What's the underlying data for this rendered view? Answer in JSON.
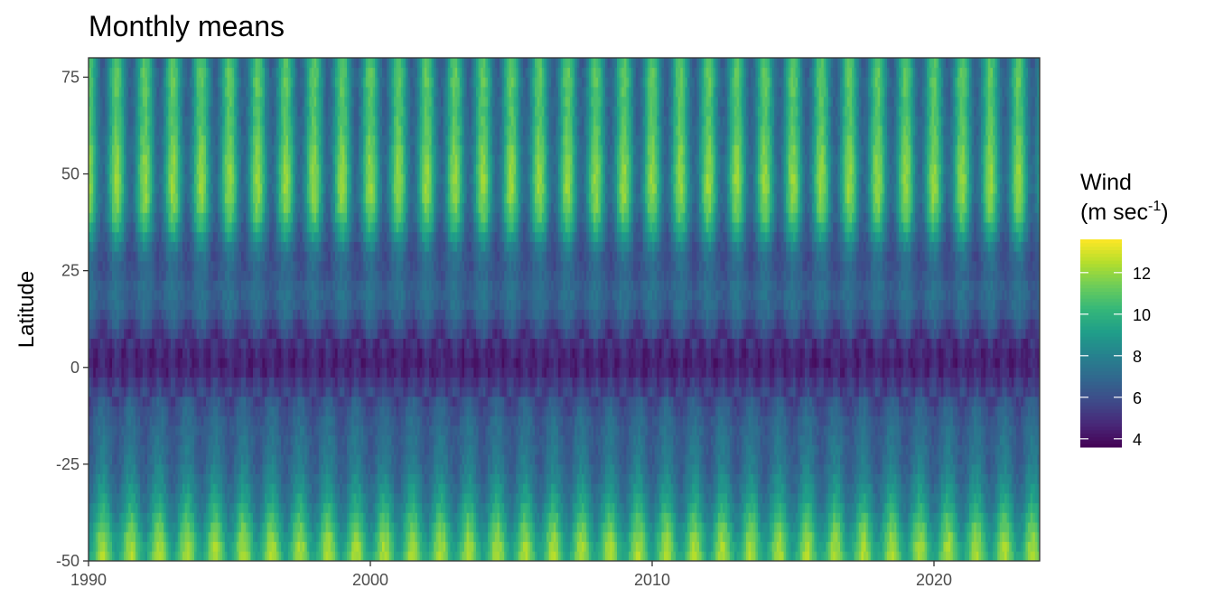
{
  "chart_data": {
    "type": "heatmap",
    "title": "Monthly means",
    "xlabel": "",
    "ylabel": "Latitude",
    "xlim": [
      1990,
      2023.75
    ],
    "ylim": [
      -50,
      80
    ],
    "x_ticks": [
      1990,
      2000,
      2010,
      2020
    ],
    "x_tick_labels": [
      "1990",
      "2000",
      "2010",
      "2020"
    ],
    "y_ticks": [
      -50,
      -25,
      0,
      25,
      50,
      75
    ],
    "y_tick_labels": [
      "-50",
      "-25",
      "0",
      "25",
      "50",
      "75"
    ],
    "x_step_months": 1,
    "latitudes": [
      -50,
      -45,
      -40,
      -35,
      -30,
      -25,
      -20,
      -15,
      -10,
      -5,
      0,
      5,
      10,
      15,
      20,
      25,
      30,
      35,
      40,
      45,
      50,
      55,
      60,
      65,
      70,
      75,
      80
    ],
    "lat_mean_wind": [
      11.0,
      10.5,
      9.5,
      8.5,
      7.8,
      7.2,
      7.0,
      6.8,
      6.3,
      5.5,
      4.5,
      4.8,
      5.8,
      6.8,
      7.0,
      6.5,
      6.8,
      8.0,
      9.0,
      9.5,
      9.5,
      9.3,
      9.0,
      8.8,
      8.8,
      9.0,
      8.5
    ],
    "lat_seasonal_amplitude": [
      1.5,
      1.6,
      1.5,
      1.2,
      1.0,
      0.8,
      0.7,
      0.6,
      0.7,
      0.8,
      0.6,
      0.8,
      0.8,
      0.6,
      0.5,
      0.6,
      1.0,
      1.8,
      2.3,
      2.5,
      2.5,
      2.4,
      2.2,
      2.1,
      2.2,
      2.3,
      2.2
    ],
    "colorbar": {
      "title_line1": "Wind",
      "title_line2_text": "(m sec",
      "title_line2_sup": "-1",
      "title_line2_end": ")",
      "min": 3.6,
      "max": 13.6,
      "ticks": [
        4,
        6,
        8,
        10,
        12
      ],
      "tick_labels": [
        "4",
        "6",
        "8",
        "10",
        "12"
      ],
      "colormap": "viridis"
    },
    "grid": false,
    "legend_position": "right"
  }
}
